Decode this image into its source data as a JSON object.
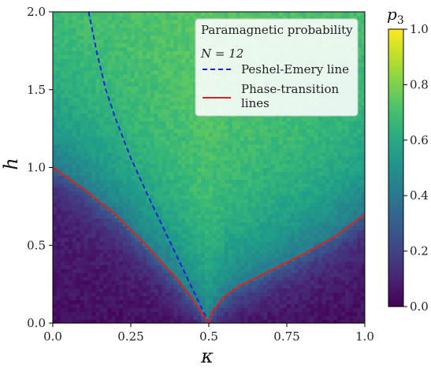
{
  "chart_data": {
    "type": "heatmap",
    "title": "",
    "xlabel": "κ",
    "ylabel": "h",
    "xlim": [
      0.0,
      1.0
    ],
    "ylim": [
      0.0,
      2.0
    ],
    "x_ticks": [
      "0.0",
      "0.25",
      "0.5",
      "0.75",
      "1.0"
    ],
    "y_ticks": [
      "0.0",
      "0.5",
      "1.0",
      "1.5",
      "2.0"
    ],
    "colorbar": {
      "label": "p3",
      "label_base": "p",
      "label_sub": "3",
      "range": [
        0.0,
        1.0
      ],
      "ticks": [
        "0.0",
        "0.2",
        "0.4",
        "0.6",
        "0.8",
        "1.0"
      ],
      "colormap": "viridis"
    },
    "legend": {
      "position": "top-right",
      "title": "Paramagnetic probability",
      "subtitle": "N = 12",
      "entries": [
        {
          "label": "Peshel-Emery line",
          "color": "#1f1fe0",
          "style": "dashed"
        },
        {
          "label_line1": "Phase-transition",
          "label_line2": "lines",
          "color": "#e02020",
          "style": "solid"
        }
      ]
    },
    "series": [
      {
        "name": "Peshel-Emery line",
        "style": "dashed",
        "color": "#1f1fe0",
        "points": [
          [
            0.115,
            2.0
          ],
          [
            0.14,
            1.75
          ],
          [
            0.17,
            1.5
          ],
          [
            0.2,
            1.32
          ],
          [
            0.25,
            1.06
          ],
          [
            0.3,
            0.84
          ],
          [
            0.35,
            0.63
          ],
          [
            0.4,
            0.42
          ],
          [
            0.45,
            0.21
          ],
          [
            0.5,
            0.0
          ]
        ]
      },
      {
        "name": "Phase-transition lines",
        "style": "solid",
        "color": "#e02020",
        "points": [
          [
            0.0,
            1.0
          ],
          [
            0.1,
            0.86
          ],
          [
            0.2,
            0.7
          ],
          [
            0.3,
            0.5
          ],
          [
            0.4,
            0.28
          ],
          [
            0.45,
            0.15
          ],
          [
            0.5,
            0.0
          ]
        ]
      },
      {
        "name": "Phase-transition lines (right)",
        "style": "solid",
        "color": "#e02020",
        "points": [
          [
            0.5,
            0.0
          ],
          [
            0.51,
            0.07
          ],
          [
            0.55,
            0.17
          ],
          [
            0.6,
            0.24
          ],
          [
            0.7,
            0.34
          ],
          [
            0.8,
            0.44
          ],
          [
            0.9,
            0.55
          ],
          [
            1.0,
            0.7
          ]
        ]
      }
    ]
  }
}
